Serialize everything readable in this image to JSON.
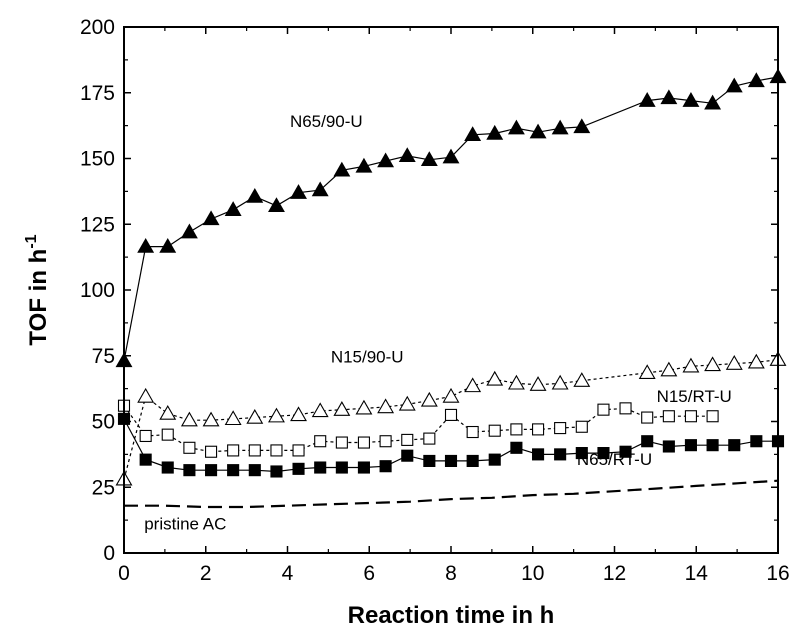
{
  "chart_data": {
    "type": "line",
    "xlabel": "Reaction time in h",
    "ylabel_main": "TOF in h",
    "ylabel_sup": "-1",
    "xlim": [
      0,
      16
    ],
    "ylim": [
      0,
      200
    ],
    "xticks": [
      "0",
      "2",
      "4",
      "6",
      "8",
      "10",
      "12",
      "14",
      "16"
    ],
    "yticks": [
      "0",
      "25",
      "50",
      "75",
      "100",
      "125",
      "150",
      "175",
      "200"
    ],
    "grid": false,
    "legend": "none",
    "series": [
      {
        "name": "N65/90-U",
        "marker": "filled-triangle",
        "line": "solid",
        "x": [
          0,
          0.53,
          1.07,
          1.6,
          2.13,
          2.67,
          3.2,
          3.73,
          4.27,
          4.8,
          5.33,
          5.87,
          6.4,
          6.93,
          7.47,
          8.0,
          8.53,
          9.07,
          9.6,
          10.13,
          10.67,
          11.2,
          12.8,
          13.33,
          13.87,
          14.4,
          14.93,
          15.47,
          16.0
        ],
        "y": [
          73,
          116.5,
          116.5,
          122,
          127,
          130.5,
          135.5,
          132,
          137,
          138,
          145.5,
          147,
          149,
          151,
          149.5,
          150.5,
          159,
          159.5,
          161.5,
          160,
          161.5,
          162,
          172,
          173,
          172,
          171,
          177.5,
          179.5,
          181
        ]
      },
      {
        "name": "N15/90-U",
        "marker": "open-triangle",
        "line": "dashed",
        "x": [
          0,
          0.53,
          1.07,
          1.6,
          2.13,
          2.67,
          3.2,
          3.73,
          4.27,
          4.8,
          5.33,
          5.87,
          6.4,
          6.93,
          7.47,
          8.0,
          8.53,
          9.07,
          9.6,
          10.13,
          10.67,
          11.2,
          12.8,
          13.33,
          13.87,
          14.4,
          14.93,
          15.47,
          16.0
        ],
        "y": [
          28,
          59.5,
          53,
          50.5,
          50.5,
          51,
          51.5,
          52,
          52.5,
          54,
          54.5,
          55,
          55.5,
          56.5,
          58,
          59.5,
          63.5,
          66,
          64.5,
          64,
          64.5,
          65.5,
          68.5,
          69.5,
          71,
          71.5,
          72,
          72.5,
          73.5
        ]
      },
      {
        "name": "N15/RT-U",
        "marker": "open-square",
        "line": "dashed",
        "x": [
          0,
          0.53,
          1.07,
          1.6,
          2.13,
          2.67,
          3.2,
          3.73,
          4.27,
          4.8,
          5.33,
          5.87,
          6.4,
          6.93,
          7.47,
          8.0,
          8.53,
          9.07,
          9.6,
          10.13,
          10.67,
          11.2,
          11.73,
          12.27,
          12.8,
          13.33,
          13.87,
          14.4
        ],
        "y": [
          56,
          44.5,
          45,
          40,
          38.5,
          39,
          39,
          39,
          39,
          42.5,
          42,
          42,
          42.5,
          43,
          43.5,
          52.5,
          46,
          46.5,
          47,
          47,
          47.5,
          48,
          54.5,
          55,
          51.5,
          52,
          52,
          52
        ]
      },
      {
        "name": "N65/RT-U",
        "marker": "filled-square",
        "line": "solid",
        "x": [
          0,
          0.53,
          1.07,
          1.6,
          2.13,
          2.67,
          3.2,
          3.73,
          4.27,
          4.8,
          5.33,
          5.87,
          6.4,
          6.93,
          7.47,
          8.0,
          8.53,
          9.07,
          9.6,
          10.13,
          10.67,
          11.2,
          11.73,
          12.27,
          12.8,
          13.33,
          13.87,
          14.4,
          14.93,
          15.47,
          16.0
        ],
        "y": [
          51,
          35.5,
          32.5,
          31.5,
          31.5,
          31.5,
          31.5,
          31,
          32,
          32.5,
          32.5,
          32.5,
          33,
          37,
          35,
          35,
          35,
          35.5,
          40,
          37.5,
          37.5,
          38,
          38,
          38.5,
          42.5,
          40.5,
          41,
          41,
          41,
          42.5,
          42.5
        ]
      },
      {
        "name": "pristine AC",
        "marker": "none",
        "line": "long-dashed",
        "x": [
          0,
          1,
          2,
          3,
          4,
          5,
          6,
          7,
          8,
          9,
          10,
          11,
          12,
          13,
          14,
          15,
          16
        ],
        "y": [
          18,
          18,
          17.5,
          17.5,
          18,
          18.5,
          19,
          19.5,
          20.5,
          21,
          22,
          22.5,
          23.5,
          24.5,
          25.5,
          26.5,
          27.5
        ]
      }
    ],
    "annotations": [
      {
        "text": "N65/90-U",
        "x": 4.95,
        "y": 162
      },
      {
        "text": "N15/90-U",
        "x": 5.95,
        "y": 72.5
      },
      {
        "text": "N15/RT-U",
        "x": 13.95,
        "y": 57.5
      },
      {
        "text": "N65/RT-U",
        "x": 12.0,
        "y": 33.5
      },
      {
        "text": "pristine AC",
        "x": 1.5,
        "y": 9
      }
    ]
  }
}
